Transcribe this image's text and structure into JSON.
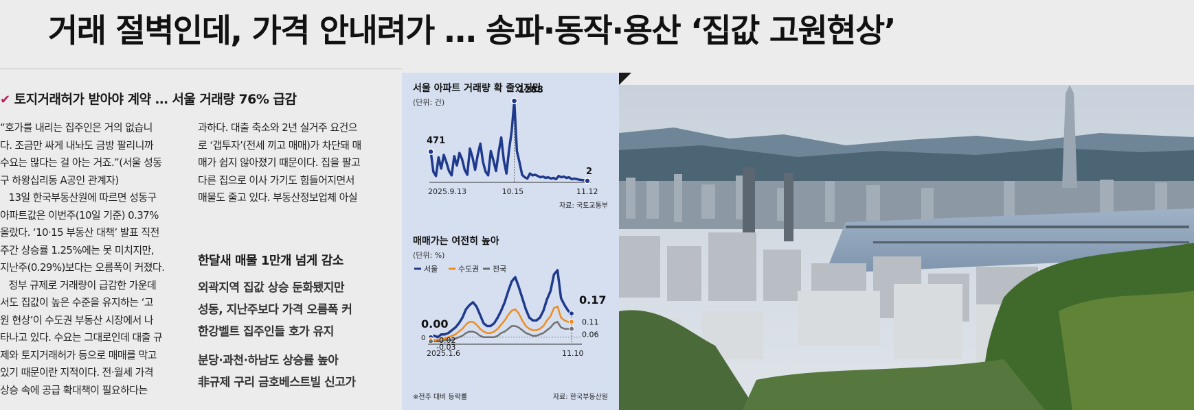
{
  "headline": "거래 절벽인데, 가격 안내려가 … 송파·동작·용산 ‘집값 고원현상’",
  "subheading": "토지거래허가 받아야 계약 … 서울 거래량 76% 급감",
  "column1": [
    "“호가를 내리는 집주인은 거의 없습니",
    "다. 조금만 싸게 내놔도 금방 팔리니까",
    "수요는 많다는 걸 아는 거죠.”(서울 성동",
    "구 하왕십리동 A공인 관계자)",
    "   13일 한국부동산원에 따르면 성동구",
    "아파트값은 이번주(10일 기준) 0.37%",
    "올랐다. ‘10·15 부동산 대책’ 발표 직전",
    "주간 상승률 1.25%에는 못 미치지만,",
    "지난주(0.29%)보다는 오름폭이 커졌다.",
    "   정부 규제로 거래량이 급감한 가운데",
    "서도 집값이 높은 수준을 유지하는 ‘고",
    "원 현상’이 수도권 부동산 시장에서 나",
    "타나고 있다. 수요는 그대로인데 대출 규",
    "제와 토지거래허가 등으로 매매를 막고",
    "있기 때문이란 지적이다. 전·월세 가격",
    "상승 속에 공급 확대책이 필요하다는"
  ],
  "column2": [
    "과하다. 대출 축소와 2년 실거주 요건으",
    "로 ‘갭투자’(전세 끼고 매매)가 차단돼 매",
    "매가 쉽지 않아졌기 때문이다. 집을 팔고",
    "다른 집으로 이사 가기도 힘들어지면서",
    "매물도 줄고 있다. 부동산정보업체 아실"
  ],
  "side_title": "한달새 매물 1만개 넘게 감소",
  "side_points": [
    "외곽지역 집값 상승 둔화됐지만",
    "성동, 지난주보다 가격 오름폭 커",
    "한강벨트 집주인들 호가 유지",
    "분당·과천·하남도 상승률 높아",
    "非규제 구리 금호베스트빌 신고가"
  ],
  "colors": {
    "seoul": "#1f3a8c",
    "capital": "#f08c1e",
    "national": "#707070",
    "graphic_bg": "#d5dff0"
  },
  "chart_data": [
    {
      "type": "line",
      "title": "서울 아파트 거래량 확 줄었지만",
      "unit": "(단위: 건)",
      "x_ticks": [
        "2025.9.13",
        "10.15",
        "11.12"
      ],
      "source": "자료: 국토교통부",
      "x": [
        "2025-09-13",
        "2025-09-14",
        "2025-09-15",
        "2025-09-16",
        "2025-09-17",
        "2025-09-18",
        "2025-09-19",
        "2025-09-20",
        "2025-09-21",
        "2025-09-22",
        "2025-09-23",
        "2025-09-24",
        "2025-09-25",
        "2025-09-26",
        "2025-09-27",
        "2025-09-28",
        "2025-09-29",
        "2025-09-30",
        "2025-10-01",
        "2025-10-02",
        "2025-10-03",
        "2025-10-04",
        "2025-10-05",
        "2025-10-06",
        "2025-10-07",
        "2025-10-08",
        "2025-10-09",
        "2025-10-10",
        "2025-10-11",
        "2025-10-12",
        "2025-10-13",
        "2025-10-14",
        "2025-10-15",
        "2025-10-16",
        "2025-10-17",
        "2025-10-18",
        "2025-10-19",
        "2025-10-20",
        "2025-10-21",
        "2025-10-22",
        "2025-10-23",
        "2025-10-24",
        "2025-10-25",
        "2025-10-26",
        "2025-10-27",
        "2025-10-28",
        "2025-10-29",
        "2025-10-30",
        "2025-10-31",
        "2025-11-01",
        "2025-11-02",
        "2025-11-03",
        "2025-11-04",
        "2025-11-05",
        "2025-11-06",
        "2025-11-07",
        "2025-11-08",
        "2025-11-09",
        "2025-11-10",
        "2025-11-11",
        "2025-11-12"
      ],
      "values": [
        471,
        150,
        80,
        380,
        200,
        420,
        300,
        160,
        90,
        400,
        250,
        450,
        350,
        180,
        100,
        520,
        380,
        180,
        420,
        600,
        310,
        150,
        90,
        480,
        330,
        160,
        460,
        700,
        330,
        120,
        500,
        800,
        1288,
        480,
        300,
        100,
        60,
        40,
        120,
        90,
        100,
        80,
        60,
        70,
        50,
        60,
        40,
        50,
        30,
        80,
        60,
        70,
        50,
        60,
        30,
        40,
        30,
        20,
        15,
        10,
        2
      ],
      "labels": [
        {
          "x": "2025-09-13",
          "text": "471"
        },
        {
          "x": "2025-10-15",
          "text": "1288"
        },
        {
          "x": "2025-11-12",
          "text": "2"
        }
      ]
    },
    {
      "type": "line",
      "title": "매매가는 여전히 높아",
      "unit": "(단위: %)",
      "x_ticks": [
        "2025.1.6",
        "11.10"
      ],
      "source": "자료: 한국부동산원",
      "footnote": "※전주 대비 등락률",
      "series": [
        {
          "name": "서울",
          "values": [
            0.0,
            0.01,
            0.0,
            0.02,
            0.02,
            0.03,
            0.05,
            0.07,
            0.1,
            0.14,
            0.2,
            0.23,
            0.25,
            0.22,
            0.16,
            0.1,
            0.08,
            0.08,
            0.1,
            0.14,
            0.19,
            0.25,
            0.33,
            0.4,
            0.43,
            0.36,
            0.28,
            0.2,
            0.14,
            0.12,
            0.12,
            0.14,
            0.19,
            0.27,
            0.33,
            0.45,
            0.48,
            0.28,
            0.23,
            0.19,
            0.17
          ],
          "end_label": "0.17"
        },
        {
          "name": "수도권",
          "values": [
            -0.02,
            -0.02,
            -0.02,
            -0.01,
            -0.01,
            0.0,
            0.01,
            0.02,
            0.04,
            0.06,
            0.09,
            0.11,
            0.11,
            0.09,
            0.06,
            0.04,
            0.03,
            0.03,
            0.04,
            0.06,
            0.09,
            0.12,
            0.16,
            0.19,
            0.2,
            0.17,
            0.12,
            0.08,
            0.06,
            0.05,
            0.05,
            0.06,
            0.08,
            0.12,
            0.15,
            0.21,
            0.22,
            0.14,
            0.12,
            0.11,
            0.11
          ],
          "start_label": "-0.02",
          "end_label": "0.11"
        },
        {
          "name": "전국",
          "values": [
            -0.03,
            -0.03,
            -0.03,
            -0.03,
            -0.02,
            -0.02,
            -0.02,
            -0.01,
            0.0,
            0.01,
            0.03,
            0.04,
            0.04,
            0.03,
            0.01,
            0.0,
            0.0,
            0.0,
            0.0,
            0.01,
            0.03,
            0.04,
            0.06,
            0.08,
            0.08,
            0.07,
            0.05,
            0.03,
            0.02,
            0.01,
            0.01,
            0.02,
            0.03,
            0.05,
            0.07,
            0.1,
            0.11,
            0.07,
            0.06,
            0.06,
            0.06
          ],
          "start_label": "-0.03",
          "end_label": "0.06"
        }
      ],
      "start_label_seoul": "0.00",
      "zero_label": "0",
      "ylim": [
        -0.05,
        0.5
      ]
    }
  ]
}
